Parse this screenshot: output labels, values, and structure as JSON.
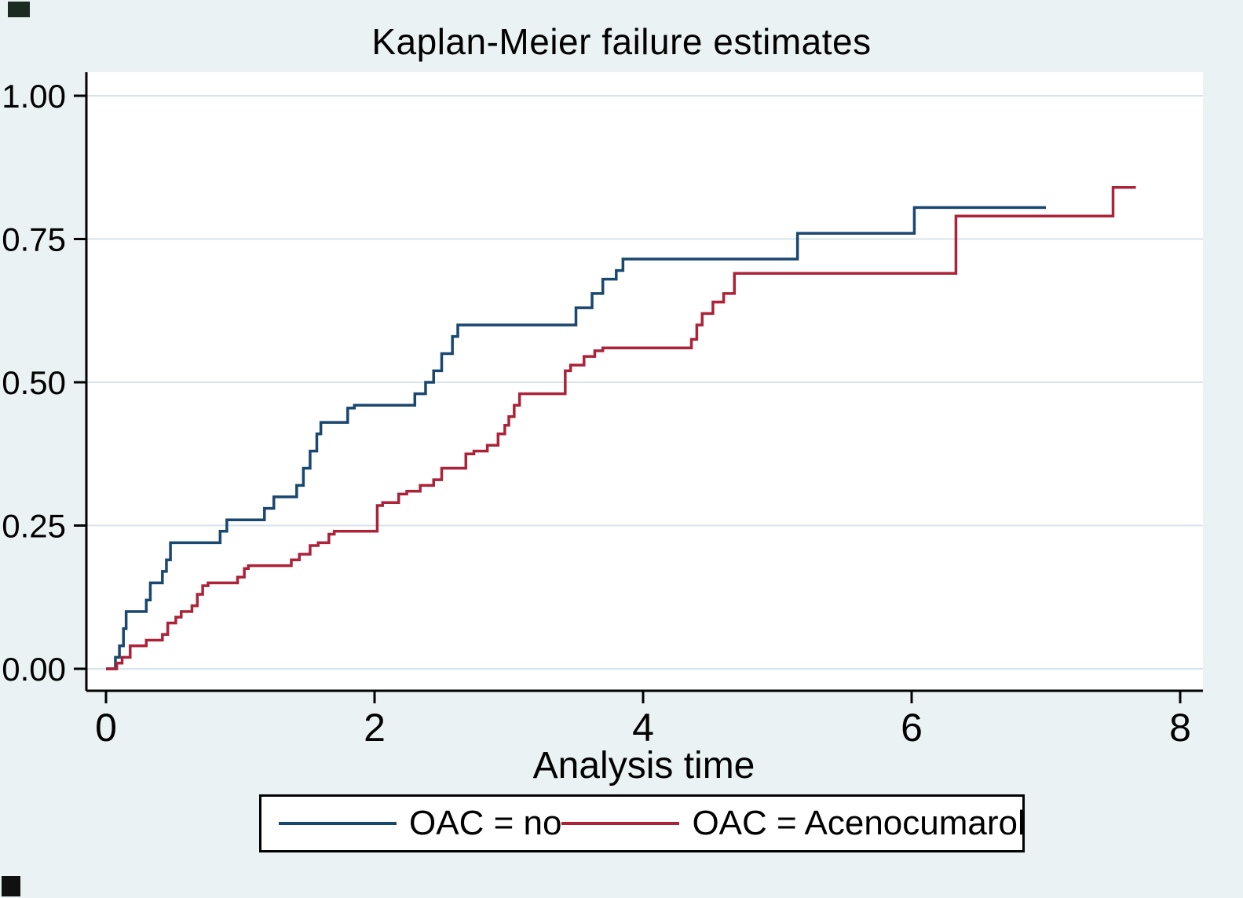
{
  "title": "Kaplan-Meier failure estimates",
  "xlabel": "Analysis time",
  "chart_data": {
    "type": "line",
    "subtype": "step-function (Kaplan-Meier failure curves)",
    "title": "Kaplan-Meier failure estimates",
    "xlabel": "Analysis time",
    "ylabel": "",
    "xlim": [
      0,
      8
    ],
    "ylim": [
      0,
      1
    ],
    "xticks": [
      0,
      2,
      4,
      6,
      8
    ],
    "yticks": [
      0,
      0.25,
      0.5,
      0.75,
      1
    ],
    "ytick_labels": [
      "0.00",
      "0.25",
      "0.50",
      "0.75",
      "1.00"
    ],
    "grid": "horizontal",
    "legend_position": "bottom",
    "background": "#eaf2f3",
    "plot_background": "#ffffff",
    "grid_color": "#d7e3ea",
    "axis_color": "#000000",
    "series": [
      {
        "name": "OAC = no",
        "color": "#1a476f",
        "end": 7.0,
        "steps": [
          [
            0.07,
            0.02
          ],
          [
            0.1,
            0.04
          ],
          [
            0.13,
            0.07
          ],
          [
            0.15,
            0.1
          ],
          [
            0.3,
            0.12
          ],
          [
            0.33,
            0.15
          ],
          [
            0.42,
            0.17
          ],
          [
            0.45,
            0.19
          ],
          [
            0.48,
            0.22
          ],
          [
            0.85,
            0.24
          ],
          [
            0.9,
            0.26
          ],
          [
            1.18,
            0.28
          ],
          [
            1.25,
            0.3
          ],
          [
            1.42,
            0.32
          ],
          [
            1.47,
            0.35
          ],
          [
            1.52,
            0.38
          ],
          [
            1.57,
            0.41
          ],
          [
            1.6,
            0.43
          ],
          [
            1.8,
            0.455
          ],
          [
            1.85,
            0.46
          ],
          [
            2.3,
            0.48
          ],
          [
            2.38,
            0.5
          ],
          [
            2.44,
            0.52
          ],
          [
            2.5,
            0.55
          ],
          [
            2.58,
            0.58
          ],
          [
            2.62,
            0.6
          ],
          [
            3.5,
            0.63
          ],
          [
            3.62,
            0.655
          ],
          [
            3.7,
            0.68
          ],
          [
            3.8,
            0.695
          ],
          [
            3.85,
            0.715
          ],
          [
            5.15,
            0.76
          ],
          [
            6.02,
            0.805
          ]
        ]
      },
      {
        "name": "OAC = Acenocumarol",
        "color": "#ab2239",
        "end": 7.67,
        "steps": [
          [
            0.08,
            0.01
          ],
          [
            0.12,
            0.02
          ],
          [
            0.18,
            0.04
          ],
          [
            0.3,
            0.05
          ],
          [
            0.42,
            0.06
          ],
          [
            0.46,
            0.08
          ],
          [
            0.52,
            0.09
          ],
          [
            0.56,
            0.1
          ],
          [
            0.64,
            0.11
          ],
          [
            0.68,
            0.13
          ],
          [
            0.72,
            0.145
          ],
          [
            0.76,
            0.15
          ],
          [
            0.98,
            0.16
          ],
          [
            1.03,
            0.175
          ],
          [
            1.06,
            0.18
          ],
          [
            1.38,
            0.19
          ],
          [
            1.44,
            0.2
          ],
          [
            1.52,
            0.215
          ],
          [
            1.58,
            0.22
          ],
          [
            1.66,
            0.235
          ],
          [
            1.7,
            0.24
          ],
          [
            2.02,
            0.285
          ],
          [
            2.06,
            0.29
          ],
          [
            2.18,
            0.305
          ],
          [
            2.24,
            0.31
          ],
          [
            2.34,
            0.32
          ],
          [
            2.44,
            0.33
          ],
          [
            2.5,
            0.35
          ],
          [
            2.68,
            0.375
          ],
          [
            2.74,
            0.38
          ],
          [
            2.84,
            0.39
          ],
          [
            2.92,
            0.41
          ],
          [
            2.97,
            0.425
          ],
          [
            3.0,
            0.44
          ],
          [
            3.04,
            0.46
          ],
          [
            3.08,
            0.48
          ],
          [
            3.42,
            0.52
          ],
          [
            3.46,
            0.53
          ],
          [
            3.56,
            0.545
          ],
          [
            3.64,
            0.555
          ],
          [
            3.7,
            0.56
          ],
          [
            4.36,
            0.575
          ],
          [
            4.4,
            0.6
          ],
          [
            4.44,
            0.62
          ],
          [
            4.52,
            0.64
          ],
          [
            4.6,
            0.655
          ],
          [
            4.68,
            0.69
          ],
          [
            6.33,
            0.79
          ],
          [
            7.5,
            0.84
          ]
        ]
      }
    ]
  }
}
